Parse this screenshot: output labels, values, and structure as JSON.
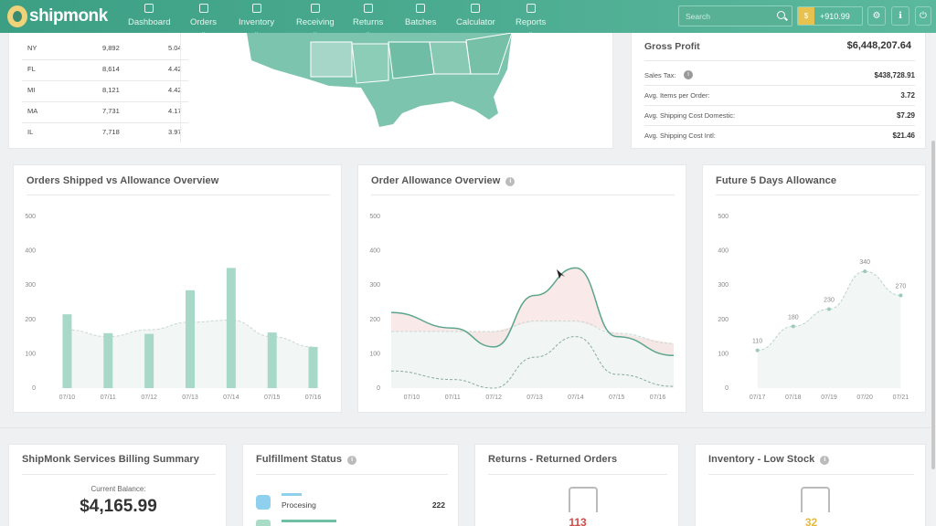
{
  "brand": {
    "logo_text": "shipmonk",
    "accent": "#4aab8f"
  },
  "nav": {
    "items": [
      {
        "label": "Dashboard",
        "icon": "home-icon"
      },
      {
        "label": "Orders",
        "icon": "orders-icon"
      },
      {
        "label": "Inventory",
        "icon": "inventory-icon"
      },
      {
        "label": "Receiving",
        "icon": "receiving-icon"
      },
      {
        "label": "Returns",
        "icon": "returns-icon"
      },
      {
        "label": "Batches",
        "icon": "batches-icon"
      },
      {
        "label": "Calculator",
        "icon": "calculator-icon"
      },
      {
        "label": "Reports",
        "icon": "reports-icon"
      }
    ],
    "search_placeholder": "Search",
    "balance": "+910.99"
  },
  "states_table": {
    "rows": [
      {
        "state": "NY",
        "orders": "9,892",
        "pct": "5.04"
      },
      {
        "state": "FL",
        "orders": "8,614",
        "pct": "4.42"
      },
      {
        "state": "MI",
        "orders": "8,121",
        "pct": "4.42"
      },
      {
        "state": "MA",
        "orders": "7,731",
        "pct": "4.17"
      },
      {
        "state": "IL",
        "orders": "7,718",
        "pct": "3.97"
      }
    ]
  },
  "profit": {
    "gross_label": "Gross Profit",
    "gross_value": "$6,448,207.64",
    "rows": [
      {
        "label": "Sales Tax:",
        "value": "$438,728.91"
      },
      {
        "label": "Avg. Items per Order:",
        "value": "3.72"
      },
      {
        "label": "Avg. Shipping Cost Domestic:",
        "value": "$7.29"
      },
      {
        "label": "Avg. Shipping Cost Intl:",
        "value": "$21.46"
      }
    ]
  },
  "cards": {
    "shipped_title": "Orders Shipped vs Allowance Overview",
    "allowance_title": "Order Allowance Overview",
    "future_title": "Future 5 Days Allowance",
    "billing_title": "ShipMonk Services Billing Summary",
    "billing_balance_label": "Current Balance:",
    "billing_balance": "$4,165.99",
    "fulfillment_title": "Fulfillment Status",
    "fulfillment_row_label": "Procesing",
    "fulfillment_row_value": "222",
    "returns_title": "Returns - Returned Orders",
    "returns_count": "113",
    "lowstock_title": "Inventory - Low Stock",
    "lowstock_count": "32"
  },
  "chart_data": [
    {
      "type": "bar",
      "title": "Orders Shipped vs Allowance Overview",
      "categories": [
        "07/10",
        "07/11",
        "07/12",
        "07/13",
        "07/14",
        "07/15",
        "07/16"
      ],
      "yticks": [
        "0",
        "100",
        "200",
        "300",
        "400",
        "500"
      ],
      "ylim": [
        0,
        500
      ],
      "series": [
        {
          "values": [
            215,
            160,
            158,
            285,
            350,
            162,
            120
          ],
          "color": "#a8d8c8"
        },
        {
          "values": [
            170,
            150,
            170,
            192,
            198,
            150,
            120
          ],
          "color": "#d8e8e2"
        }
      ]
    },
    {
      "type": "area",
      "title": "Order Allowance Overview",
      "categories": [
        "07/10",
        "07/11",
        "07/12",
        "07/13",
        "07/14",
        "07/15",
        "07/16"
      ],
      "yticks": [
        "0",
        "100",
        "200",
        "300",
        "400",
        "500"
      ],
      "ylim": [
        0,
        500
      ],
      "series": [
        {
          "values": [
            220,
            175,
            120,
            270,
            350,
            150,
            95
          ],
          "color": "#5aa58b"
        },
        {
          "values": [
            165,
            165,
            165,
            195,
            195,
            160,
            130
          ],
          "color": "#f5dede"
        },
        {
          "values": [
            50,
            25,
            0,
            90,
            150,
            40,
            5
          ],
          "color": "#8aa9a0"
        }
      ]
    },
    {
      "type": "line",
      "title": "Future 5 Days Allowance",
      "categories": [
        "07/17",
        "07/18",
        "07/19",
        "07/20",
        "07/21"
      ],
      "yticks": [
        "0",
        "100",
        "200",
        "300",
        "400",
        "500"
      ],
      "ylim": [
        0,
        500
      ],
      "values": [
        110,
        180,
        230,
        340,
        270
      ]
    }
  ]
}
